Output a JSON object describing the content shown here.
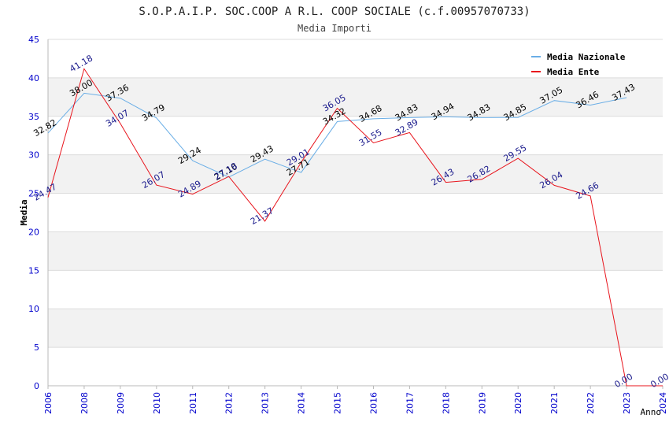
{
  "chart_data": {
    "type": "line",
    "title": "S.O.P.A.I.P. SOC.COOP A R.L. COOP SOCIALE (c.f.00957070733)",
    "subtitle": "Media Importi",
    "xlabel": "Anno",
    "ylabel": "Media",
    "ylim": [
      0,
      45
    ],
    "yticks": [
      "0",
      "5",
      "10",
      "15",
      "20",
      "25",
      "30",
      "35",
      "40",
      "45"
    ],
    "categories": [
      "2006",
      "2008",
      "2009",
      "2010",
      "2011",
      "2012",
      "2013",
      "2014",
      "2015",
      "2016",
      "2017",
      "2018",
      "2019",
      "2020",
      "2021",
      "2022",
      "2023",
      "2024"
    ],
    "grid": true,
    "legend_position": "top-right",
    "series": [
      {
        "name": "Media Nazionale",
        "color": "#6aaee6",
        "label_color": "#000000",
        "values": [
          32.82,
          38.0,
          37.36,
          34.79,
          29.24,
          27.1,
          29.43,
          27.71,
          34.32,
          34.68,
          34.83,
          34.94,
          34.83,
          34.85,
          37.05,
          36.46,
          37.43,
          null
        ],
        "labels": [
          "32.82",
          "38.00",
          "37.36",
          "34.79",
          "29.24",
          "27.10",
          "29.43",
          "27.71",
          "34.32",
          "34.68",
          "34.83",
          "34.94",
          "34.83",
          "34.85",
          "37.05",
          "36.46",
          "37.43",
          ""
        ]
      },
      {
        "name": "Media Ente",
        "color": "#e8141c",
        "label_color": "#1a1a8c",
        "values": [
          24.47,
          41.18,
          34.07,
          26.07,
          24.89,
          27.18,
          21.37,
          29.01,
          36.05,
          31.55,
          32.89,
          26.43,
          26.82,
          29.55,
          26.04,
          24.66,
          0.0,
          0.0
        ],
        "labels": [
          "24.47",
          "41.18",
          "34.07",
          "26.07",
          "24.89",
          "27.18",
          "21.37",
          "29.01",
          "36.05",
          "31.55",
          "32.89",
          "26.43",
          "26.82",
          "29.55",
          "26.04",
          "24.66",
          "0.00",
          "0.00"
        ]
      }
    ]
  }
}
